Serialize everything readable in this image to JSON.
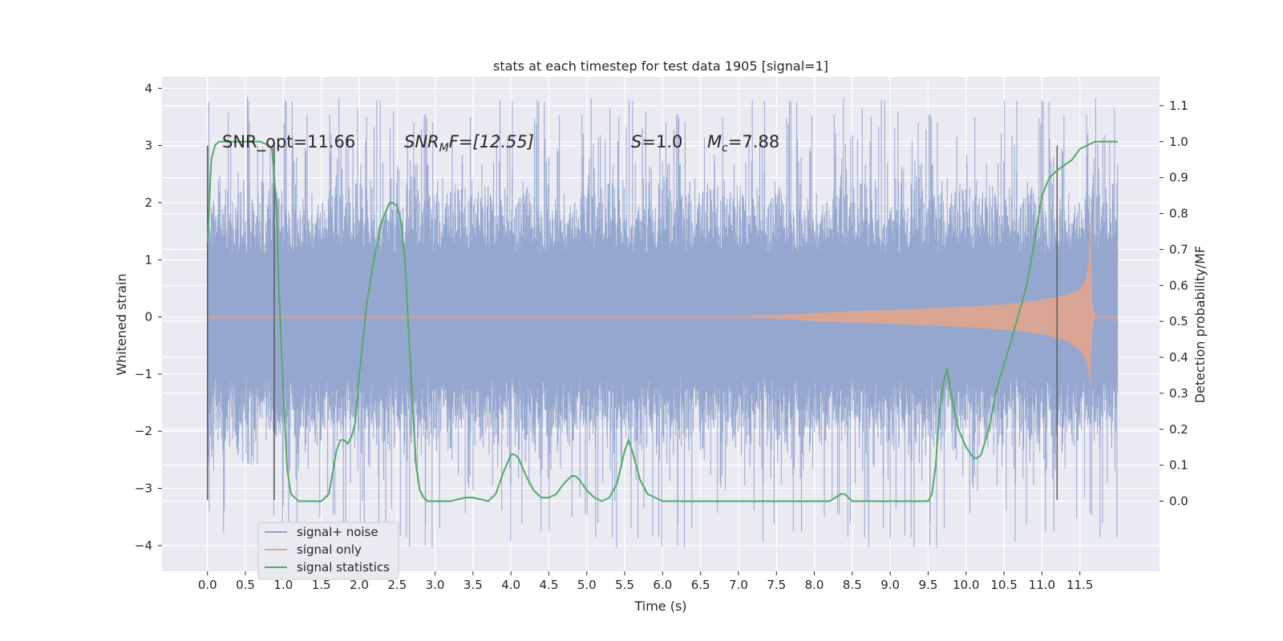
{
  "chart_data": {
    "type": "line",
    "title": "stats at each timestep for test data 1905 [signal=1]",
    "xlabel": "Time (s)",
    "ylabel_left": "Whitened strain",
    "ylabel_right": "Detection probability/MF",
    "xlim": [
      -0.6,
      12.55
    ],
    "ylim_left": [
      -4.45,
      4.2
    ],
    "ylim_right": [
      -0.195,
      1.18
    ],
    "x_ticks": [
      "0.0",
      "0.5",
      "1.0",
      "1.5",
      "2.0",
      "2.5",
      "3.0",
      "3.5",
      "4.0",
      "4.5",
      "5.0",
      "5.5",
      "6.0",
      "6.5",
      "7.0",
      "7.5",
      "8.0",
      "8.5",
      "9.0",
      "9.5",
      "10.0",
      "10.5",
      "11.0",
      "11.5"
    ],
    "y_ticks_left": [
      "−4",
      "−3",
      "−2",
      "−1",
      "0",
      "1",
      "2",
      "3",
      "4"
    ],
    "y_ticks_right": [
      "0.0",
      "0.1",
      "0.2",
      "0.3",
      "0.4",
      "0.5",
      "0.6",
      "0.7",
      "0.8",
      "0.9",
      "1.0",
      "1.1"
    ],
    "grid": true,
    "legend_placement": "lower-left",
    "annotations": {
      "snr_opt": "SNR_opt=11.66",
      "snr_mf_sym": "SNR",
      "snr_mf_sub": "M",
      "snr_mf_rest": "F=[12.55]",
      "s_sym": "S",
      "s_rest": "=1.0",
      "mc_sym": "M",
      "mc_sub": "c",
      "mc_rest": "=7.88"
    },
    "vertical_lines": [
      {
        "x": 0.0,
        "y_range": [
          -3.2,
          3.0
        ]
      },
      {
        "x": 0.88,
        "y_range": [
          -3.2,
          3.0
        ]
      },
      {
        "x": 11.2,
        "y_range": [
          -3.2,
          3.0
        ]
      }
    ],
    "series": [
      {
        "name": "signal+ noise",
        "axis": "left",
        "color": "#8da0cb",
        "x_range": [
          0.0,
          12.0
        ],
        "envelope_typical": 1.9,
        "envelope_peak_max": 3.85,
        "envelope_peak_min": -4.05
      },
      {
        "name": "signal only",
        "axis": "left",
        "color": "#e5a48a",
        "x_range": [
          0.0,
          12.0
        ],
        "amplitude": {
          "x": [
            0.0,
            7.0,
            7.5,
            8.0,
            8.5,
            9.0,
            9.5,
            10.0,
            10.5,
            11.0,
            11.3,
            11.5,
            11.58,
            11.62,
            11.64,
            11.66,
            11.7,
            12.0
          ],
          "y_max": [
            0.01,
            0.01,
            0.03,
            0.07,
            0.1,
            0.12,
            0.15,
            0.18,
            0.22,
            0.3,
            0.38,
            0.48,
            0.65,
            1.0,
            1.9,
            0.3,
            0.01,
            0.01
          ],
          "y_min": [
            -0.01,
            -0.01,
            -0.03,
            -0.07,
            -0.1,
            -0.12,
            -0.15,
            -0.18,
            -0.22,
            -0.3,
            -0.4,
            -0.58,
            -0.75,
            -1.0,
            -1.25,
            -0.3,
            -0.01,
            -0.01
          ]
        }
      },
      {
        "name": "signal statistics",
        "axis": "right",
        "color": "#55a868",
        "x": [
          0.0,
          0.05,
          0.1,
          0.15,
          0.2,
          0.3,
          0.5,
          0.7,
          0.8,
          0.85,
          0.9,
          0.95,
          1.0,
          1.05,
          1.1,
          1.2,
          1.3,
          1.5,
          1.6,
          1.65,
          1.7,
          1.75,
          1.8,
          1.85,
          1.9,
          1.95,
          2.0,
          2.1,
          2.2,
          2.3,
          2.4,
          2.45,
          2.5,
          2.55,
          2.6,
          2.65,
          2.7,
          2.75,
          2.8,
          2.85,
          2.9,
          3.0,
          3.2,
          3.4,
          3.5,
          3.7,
          3.8,
          3.9,
          4.0,
          4.05,
          4.1,
          4.2,
          4.3,
          4.4,
          4.5,
          4.6,
          4.7,
          4.8,
          4.85,
          4.9,
          5.0,
          5.1,
          5.2,
          5.3,
          5.4,
          5.5,
          5.55,
          5.6,
          5.7,
          5.8,
          6.0,
          6.5,
          7.0,
          8.0,
          8.2,
          8.35,
          8.4,
          8.5,
          9.0,
          9.5,
          9.55,
          9.6,
          9.65,
          9.7,
          9.75,
          9.8,
          9.9,
          10.0,
          10.1,
          10.15,
          10.2,
          10.3,
          10.4,
          10.6,
          10.8,
          10.9,
          11.0,
          11.1,
          11.2,
          11.4,
          11.5,
          11.6,
          11.7,
          12.0
        ],
        "y": [
          0.72,
          0.95,
          0.99,
          1.0,
          1.0,
          1.0,
          1.0,
          1.0,
          0.99,
          0.98,
          0.85,
          0.55,
          0.3,
          0.09,
          0.02,
          0.0,
          0.0,
          0.0,
          0.02,
          0.08,
          0.14,
          0.17,
          0.17,
          0.16,
          0.18,
          0.22,
          0.35,
          0.55,
          0.68,
          0.78,
          0.83,
          0.83,
          0.82,
          0.78,
          0.68,
          0.48,
          0.28,
          0.1,
          0.03,
          0.01,
          0.0,
          0.0,
          0.0,
          0.01,
          0.01,
          0.0,
          0.02,
          0.08,
          0.13,
          0.13,
          0.12,
          0.07,
          0.03,
          0.01,
          0.01,
          0.02,
          0.05,
          0.07,
          0.07,
          0.06,
          0.03,
          0.01,
          0.0,
          0.01,
          0.05,
          0.14,
          0.17,
          0.14,
          0.06,
          0.02,
          0.0,
          0.0,
          0.0,
          0.0,
          0.0,
          0.02,
          0.02,
          0.0,
          0.0,
          0.0,
          0.02,
          0.1,
          0.25,
          0.33,
          0.37,
          0.3,
          0.2,
          0.15,
          0.12,
          0.12,
          0.13,
          0.2,
          0.31,
          0.45,
          0.6,
          0.72,
          0.85,
          0.9,
          0.92,
          0.95,
          0.98,
          0.99,
          1.0,
          1.0
        ]
      }
    ]
  }
}
